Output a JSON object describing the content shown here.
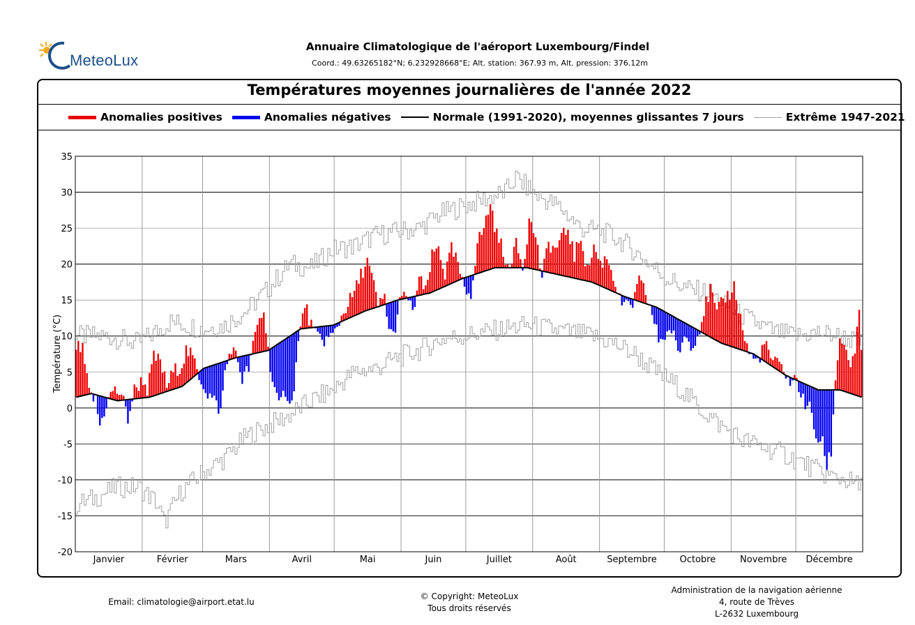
{
  "header": {
    "logo_text": "MeteoLux",
    "title": "Annuaire Climatologique de l'aéroport Luxembourg/Findel",
    "coords": "Coord.: 49.63265182°N; 6.232928668°E; Alt. station: 367.93 m, Alt. pression: 376.12m"
  },
  "colors": {
    "positive": "#ee0000",
    "negative": "#0000ee",
    "normal": "#000000",
    "extreme": "#a0a0a0",
    "grid": "#888888"
  },
  "chart_data": {
    "type": "bar",
    "title": "Températures moyennes journalières de l'année 2022",
    "ylabel": "Température (°C)",
    "xlabel": "",
    "ylim": [
      -20,
      35
    ],
    "yticks": [
      35,
      30,
      25,
      20,
      15,
      10,
      5,
      0,
      -5,
      -10,
      -15,
      -20
    ],
    "months": [
      "Janvier",
      "Février",
      "Mars",
      "Avril",
      "Mai",
      "Juin",
      "Juillet",
      "Août",
      "Septembre",
      "Octobre",
      "Novembre",
      "Décembre"
    ],
    "days_per_month": [
      31,
      28,
      31,
      30,
      31,
      30,
      31,
      31,
      30,
      31,
      30,
      31
    ],
    "grid": true,
    "legend_position": "top",
    "legend": [
      {
        "label": "Anomalies positives",
        "style": "red-bar"
      },
      {
        "label": "Anomalies négatives",
        "style": "blue-bar"
      },
      {
        "label": "Normale (1991-2020), moyennes glissantes 7 jours",
        "style": "black-line"
      },
      {
        "label": "Extrême 1947-2021",
        "style": "gray-line"
      }
    ],
    "normal_anchors": [
      [
        1,
        1.5
      ],
      [
        8,
        2
      ],
      [
        20,
        1
      ],
      [
        35,
        1.5
      ],
      [
        50,
        3
      ],
      [
        60,
        5.5
      ],
      [
        75,
        7
      ],
      [
        90,
        8
      ],
      [
        105,
        11
      ],
      [
        120,
        11.5
      ],
      [
        135,
        13.5
      ],
      [
        150,
        15
      ],
      [
        165,
        16
      ],
      [
        180,
        18
      ],
      [
        195,
        19.5
      ],
      [
        210,
        19.5
      ],
      [
        225,
        18.5
      ],
      [
        240,
        17.5
      ],
      [
        255,
        15.5
      ],
      [
        270,
        14
      ],
      [
        285,
        11.5
      ],
      [
        300,
        9
      ],
      [
        315,
        7.5
      ],
      [
        330,
        4.5
      ],
      [
        345,
        2.5
      ],
      [
        355,
        2.5
      ],
      [
        365,
        1.5
      ]
    ],
    "daily_anchors": [
      [
        1,
        8.5
      ],
      [
        4,
        8
      ],
      [
        7,
        2
      ],
      [
        10,
        1
      ],
      [
        12,
        -2.5
      ],
      [
        15,
        0.5
      ],
      [
        18,
        2.5
      ],
      [
        22,
        2
      ],
      [
        25,
        -1.5
      ],
      [
        28,
        2.5
      ],
      [
        32,
        4
      ],
      [
        34,
        2.5
      ],
      [
        37,
        7
      ],
      [
        40,
        6.5
      ],
      [
        43,
        3
      ],
      [
        46,
        5
      ],
      [
        50,
        6
      ],
      [
        52,
        8
      ],
      [
        55,
        7
      ],
      [
        58,
        4.5
      ],
      [
        62,
        2
      ],
      [
        65,
        1
      ],
      [
        68,
        -0.5
      ],
      [
        70,
        5
      ],
      [
        73,
        8.5
      ],
      [
        76,
        6.5
      ],
      [
        78,
        4
      ],
      [
        81,
        5.5
      ],
      [
        85,
        11.5
      ],
      [
        88,
        13.5
      ],
      [
        90,
        8
      ],
      [
        92,
        4
      ],
      [
        95,
        0
      ],
      [
        98,
        2.5
      ],
      [
        101,
        0.5
      ],
      [
        104,
        9
      ],
      [
        107,
        14.5
      ],
      [
        110,
        11.5
      ],
      [
        112,
        10
      ],
      [
        116,
        9.5
      ],
      [
        120,
        10
      ],
      [
        123,
        12
      ],
      [
        126,
        14
      ],
      [
        130,
        16
      ],
      [
        133,
        18.5
      ],
      [
        136,
        20.5
      ],
      [
        139,
        17
      ],
      [
        141,
        14
      ],
      [
        144,
        15.5
      ],
      [
        146,
        11
      ],
      [
        148,
        10
      ],
      [
        151,
        14.5
      ],
      [
        154,
        16
      ],
      [
        157,
        13
      ],
      [
        160,
        18
      ],
      [
        163,
        16
      ],
      [
        166,
        21
      ],
      [
        169,
        22.5
      ],
      [
        172,
        18.5
      ],
      [
        175,
        22
      ],
      [
        178,
        20
      ],
      [
        181,
        16
      ],
      [
        184,
        16
      ],
      [
        187,
        23
      ],
      [
        190,
        25
      ],
      [
        193,
        28.5
      ],
      [
        196,
        24
      ],
      [
        199,
        22
      ],
      [
        202,
        18.5
      ],
      [
        205,
        24
      ],
      [
        208,
        19.5
      ],
      [
        211,
        26
      ],
      [
        214,
        24
      ],
      [
        217,
        18
      ],
      [
        220,
        23
      ],
      [
        223,
        22
      ],
      [
        226,
        23.5
      ],
      [
        229,
        25
      ],
      [
        232,
        21
      ],
      [
        235,
        24
      ],
      [
        238,
        19
      ],
      [
        241,
        22.5
      ],
      [
        244,
        20
      ],
      [
        247,
        21
      ],
      [
        250,
        18.5
      ],
      [
        253,
        15
      ],
      [
        256,
        14
      ],
      [
        259,
        14.5
      ],
      [
        262,
        17.5
      ],
      [
        265,
        16
      ],
      [
        268,
        13
      ],
      [
        271,
        9.5
      ],
      [
        274,
        10
      ],
      [
        277,
        11
      ],
      [
        280,
        7.5
      ],
      [
        283,
        10
      ],
      [
        286,
        9
      ],
      [
        289,
        10
      ],
      [
        292,
        13.5
      ],
      [
        295,
        16.5
      ],
      [
        298,
        13
      ],
      [
        301,
        15
      ],
      [
        304,
        16
      ],
      [
        306,
        17
      ],
      [
        308,
        14
      ],
      [
        311,
        9.5
      ],
      [
        314,
        7
      ],
      [
        317,
        6.5
      ],
      [
        320,
        9
      ],
      [
        323,
        7
      ],
      [
        326,
        6
      ],
      [
        329,
        5.5
      ],
      [
        332,
        3.5
      ],
      [
        335,
        4
      ],
      [
        338,
        1
      ],
      [
        341,
        0
      ],
      [
        344,
        -4
      ],
      [
        347,
        -5
      ],
      [
        349,
        -8
      ],
      [
        351,
        -6
      ],
      [
        353,
        4
      ],
      [
        355,
        10
      ],
      [
        358,
        8
      ],
      [
        360,
        6
      ],
      [
        362,
        7
      ],
      [
        364,
        13.5
      ],
      [
        365,
        8
      ]
    ],
    "extreme_max_anchors": [
      [
        1,
        10
      ],
      [
        15,
        10
      ],
      [
        30,
        9
      ],
      [
        45,
        12
      ],
      [
        60,
        11
      ],
      [
        70,
        11.5
      ],
      [
        80,
        13.5
      ],
      [
        90,
        16.5
      ],
      [
        100,
        20
      ],
      [
        110,
        19.5
      ],
      [
        120,
        22
      ],
      [
        130,
        22.5
      ],
      [
        140,
        24
      ],
      [
        150,
        24.5
      ],
      [
        160,
        25
      ],
      [
        170,
        27
      ],
      [
        180,
        28
      ],
      [
        190,
        29
      ],
      [
        200,
        30
      ],
      [
        205,
        32
      ],
      [
        215,
        29.5
      ],
      [
        225,
        28
      ],
      [
        235,
        25
      ],
      [
        245,
        24.5
      ],
      [
        255,
        23
      ],
      [
        265,
        20.5
      ],
      [
        275,
        18
      ],
      [
        285,
        16.5
      ],
      [
        295,
        16
      ],
      [
        305,
        13.5
      ],
      [
        315,
        12
      ],
      [
        325,
        10.5
      ],
      [
        335,
        10
      ],
      [
        345,
        10.5
      ],
      [
        355,
        10
      ],
      [
        365,
        9
      ]
    ],
    "extreme_min_anchors": [
      [
        1,
        -13.5
      ],
      [
        10,
        -12.5
      ],
      [
        20,
        -11
      ],
      [
        30,
        -11
      ],
      [
        38,
        -13
      ],
      [
        42,
        -16
      ],
      [
        50,
        -11.5
      ],
      [
        60,
        -9
      ],
      [
        70,
        -7
      ],
      [
        80,
        -4
      ],
      [
        90,
        -2.5
      ],
      [
        100,
        -1
      ],
      [
        110,
        1
      ],
      [
        120,
        2.5
      ],
      [
        130,
        5
      ],
      [
        140,
        5.5
      ],
      [
        150,
        7
      ],
      [
        160,
        8
      ],
      [
        170,
        9.5
      ],
      [
        180,
        10
      ],
      [
        190,
        10.5
      ],
      [
        200,
        11
      ],
      [
        210,
        11.5
      ],
      [
        220,
        11
      ],
      [
        230,
        10.5
      ],
      [
        240,
        10
      ],
      [
        250,
        9
      ],
      [
        260,
        7.5
      ],
      [
        270,
        5
      ],
      [
        280,
        3
      ],
      [
        290,
        0
      ],
      [
        300,
        -2.5
      ],
      [
        310,
        -4.5
      ],
      [
        320,
        -5.5
      ],
      [
        330,
        -6.5
      ],
      [
        340,
        -8
      ],
      [
        350,
        -9.5
      ],
      [
        358,
        -10
      ],
      [
        365,
        -11
      ]
    ]
  },
  "footer": {
    "email": "Email: climatologie@airport.etat.lu",
    "copyright_line1": "© Copyright: MeteoLux",
    "copyright_line2": "Tous droits réservés",
    "admin_line1": "Administration de la navigation aérienne",
    "admin_line2": "4, route de Trèves",
    "admin_line3": "L-2632 Luxembourg"
  }
}
